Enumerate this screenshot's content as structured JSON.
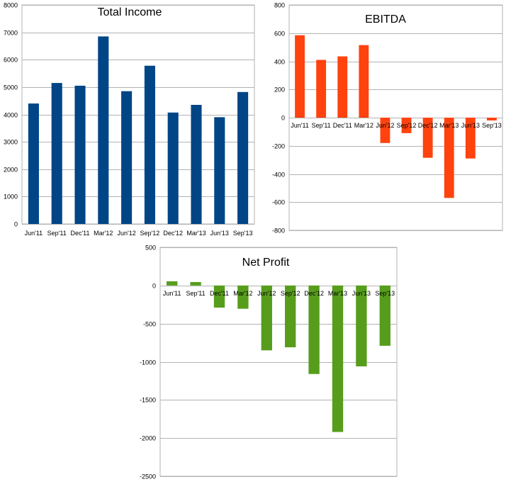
{
  "chart_data": [
    {
      "type": "bar",
      "title": "Total Income",
      "categories": [
        "Jun'11",
        "Sep'11",
        "Dec'11",
        "Mar'12",
        "Jun'12",
        "Sep'12",
        "Dec'12",
        "Mar'13",
        "Jun'13",
        "Sep'13"
      ],
      "values": [
        4400,
        5150,
        5050,
        6850,
        4850,
        5780,
        4070,
        4350,
        3900,
        4820
      ],
      "ylim": [
        0,
        8000
      ],
      "yticks": [
        0,
        1000,
        2000,
        3000,
        4000,
        5000,
        6000,
        7000,
        8000
      ],
      "grid": true,
      "color": "#004586"
    },
    {
      "type": "bar",
      "title": "EBITDA",
      "categories": [
        "Jun'11",
        "Sep'11",
        "Dec'11",
        "Mar'12",
        "Jun'12",
        "Sep'12",
        "Dec'12",
        "Mar'13",
        "Jun'13",
        "Sep'13"
      ],
      "values": [
        585,
        410,
        435,
        515,
        -180,
        -110,
        -285,
        -570,
        -290,
        -20
      ],
      "ylim": [
        -800,
        800
      ],
      "yticks": [
        -800,
        -600,
        -400,
        -200,
        0,
        200,
        400,
        600,
        800
      ],
      "grid": true,
      "color": "#ff420e"
    },
    {
      "type": "bar",
      "title": "Net Profit",
      "categories": [
        "Jun'11",
        "Sep'11",
        "Dec'11",
        "Mar'12",
        "Jun'12",
        "Sep'12",
        "Dec'12",
        "Mar'13",
        "Jun'13",
        "Sep'13"
      ],
      "values": [
        55,
        45,
        -290,
        -305,
        -850,
        -810,
        -1160,
        -1920,
        -1060,
        -790
      ],
      "ylim": [
        -2500,
        500
      ],
      "yticks": [
        -2500,
        -2000,
        -1500,
        -1000,
        -500,
        0,
        500
      ],
      "grid": true,
      "color": "#579d1c"
    }
  ]
}
